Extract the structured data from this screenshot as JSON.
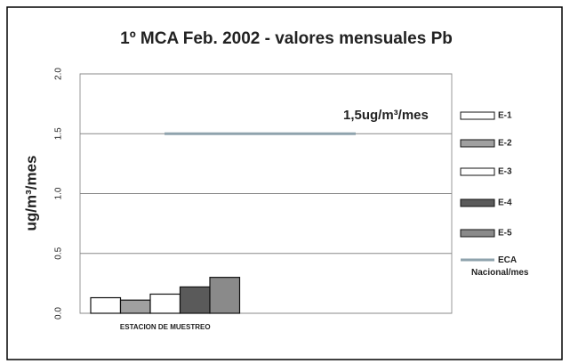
{
  "chart_data": {
    "type": "bar",
    "title": "1º MCA Feb. 2002 - valores mensuales Pb",
    "y_label": "ug/m³/mes",
    "annotation": "1,5ug/m³/mes",
    "categories": [
      "ESTACION DE MUESTREO"
    ],
    "series": [
      {
        "name": "E-1",
        "color": "#ffffff",
        "values": [
          0.13
        ]
      },
      {
        "name": "E-2",
        "color": "#a0a0a0",
        "values": [
          0.11
        ]
      },
      {
        "name": "E-3",
        "color": "#ffffff",
        "values": [
          0.16
        ]
      },
      {
        "name": "E-4",
        "color": "#5a5a5a",
        "values": [
          0.22
        ]
      },
      {
        "name": "E-5",
        "color": "#8a8a8a",
        "values": [
          0.3
        ]
      },
      {
        "name": "ECA Nacional/mes",
        "color": "#8fa3ad",
        "values": [
          1.5
        ],
        "kind": "line"
      }
    ],
    "ylim": [
      0,
      2
    ],
    "yticks": [
      {
        "value": 0,
        "label": "0.0"
      },
      {
        "value": 0.5,
        "label": "0.5"
      },
      {
        "value": 1,
        "label": "1.0"
      },
      {
        "value": 1.5,
        "label": "1.5"
      },
      {
        "value": 2,
        "label": "2.0"
      }
    ],
    "grid": true,
    "legend": "right"
  }
}
